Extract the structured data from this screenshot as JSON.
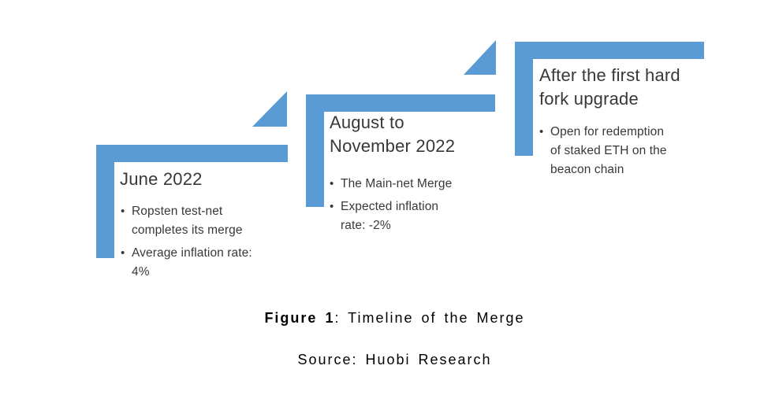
{
  "colors": {
    "accent_blue": "#5B9BD5",
    "body_text": "#383838",
    "caption_text": "#000000"
  },
  "icons": {
    "bullet": "•"
  },
  "steps": [
    {
      "title": "June 2022",
      "bullets": [
        "Ropsten test-net\ncompletes its merge",
        "Average inflation rate:\n4%"
      ]
    },
    {
      "title": "August to\nNovember 2022",
      "bullets": [
        "The Main-net Merge",
        "Expected inflation\nrate: -2%"
      ]
    },
    {
      "title": "After the first hard\nfork upgrade",
      "bullets": [
        "Open for redemption\nof staked ETH on the\nbeacon chain"
      ]
    }
  ],
  "caption": {
    "figure_label": "Figure 1",
    "figure_rest": ": Timeline of the Merge",
    "source": "Source: Huobi Research"
  }
}
